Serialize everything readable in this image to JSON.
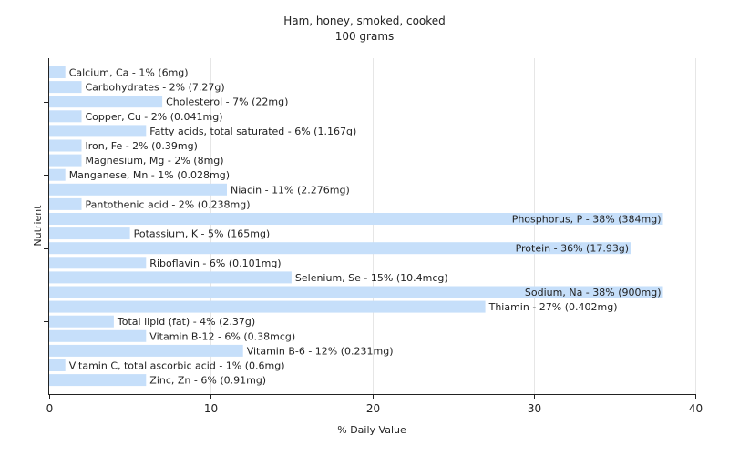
{
  "chart_data": {
    "type": "bar",
    "orientation": "horizontal",
    "title": "Ham, honey, smoked, cooked",
    "subtitle": "100 grams",
    "xlabel": "% Daily Value",
    "ylabel": "Nutrient",
    "xlim": [
      0,
      40
    ],
    "xticks": [
      0,
      10,
      20,
      30,
      40
    ],
    "grid": true,
    "bar_color": "#c6dffa",
    "grid_color": "#e6e6e6",
    "categories": [
      "Calcium, Ca",
      "Carbohydrates",
      "Cholesterol",
      "Copper, Cu",
      "Fatty acids, total saturated",
      "Iron, Fe",
      "Magnesium, Mg",
      "Manganese, Mn",
      "Niacin",
      "Pantothenic acid",
      "Phosphorus, P",
      "Potassium, K",
      "Protein",
      "Riboflavin",
      "Selenium, Se",
      "Sodium, Na",
      "Thiamin",
      "Total lipid (fat)",
      "Vitamin B-12",
      "Vitamin B-6",
      "Vitamin C, total ascorbic acid",
      "Zinc, Zn"
    ],
    "values": [
      1,
      2,
      7,
      2,
      6,
      2,
      2,
      1,
      11,
      2,
      38,
      5,
      36,
      6,
      15,
      38,
      27,
      4,
      6,
      12,
      1,
      6
    ],
    "labels": [
      "Calcium, Ca - 1% (6mg)",
      "Carbohydrates - 2% (7.27g)",
      "Cholesterol - 7% (22mg)",
      "Copper, Cu - 2% (0.041mg)",
      "Fatty acids, total saturated - 6% (1.167g)",
      "Iron, Fe - 2% (0.39mg)",
      "Magnesium, Mg - 2% (8mg)",
      "Manganese, Mn - 1% (0.028mg)",
      "Niacin - 11% (2.276mg)",
      "Pantothenic acid - 2% (0.238mg)",
      "Phosphorus, P - 38% (384mg)",
      "Potassium, K - 5% (165mg)",
      "Protein - 36% (17.93g)",
      "Riboflavin - 6% (0.101mg)",
      "Selenium, Se - 15% (10.4mcg)",
      "Sodium, Na - 38% (900mg)",
      "Thiamin - 27% (0.402mg)",
      "Total lipid (fat) - 4% (2.37g)",
      "Vitamin B-12 - 6% (0.38mcg)",
      "Vitamin B-6 - 12% (0.231mg)",
      "Vitamin C, total ascorbic acid - 1% (0.6mg)",
      "Zinc, Zn - 6% (0.91mg)"
    ]
  }
}
